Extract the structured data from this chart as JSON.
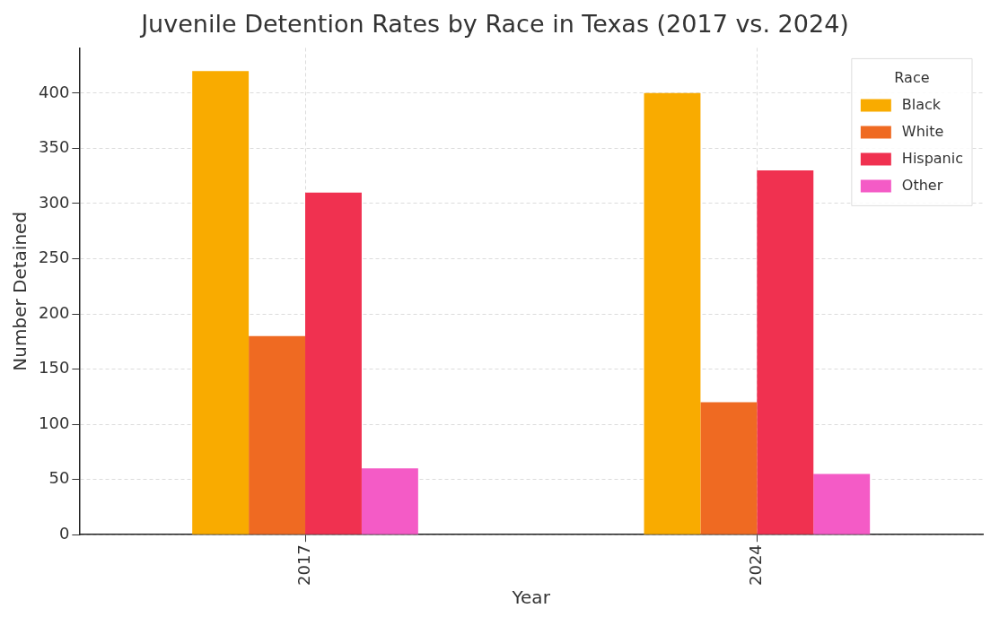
{
  "chart_data": {
    "type": "bar",
    "title": "Juvenile Detention Rates by Race in Texas (2017 vs. 2024)",
    "xlabel": "Year",
    "ylabel": "Number Detained",
    "legend_title": "Race",
    "categories": [
      "2017",
      "2024"
    ],
    "series": [
      {
        "name": "Black",
        "color": "#f9ab00",
        "values": [
          420,
          400
        ]
      },
      {
        "name": "White",
        "color": "#ef6a22",
        "values": [
          180,
          120
        ]
      },
      {
        "name": "Hispanic",
        "color": "#f03150",
        "values": [
          310,
          330
        ]
      },
      {
        "name": "Other",
        "color": "#f45bc6",
        "values": [
          60,
          55
        ]
      }
    ],
    "ylim": [
      0,
      441
    ],
    "yticks": [
      0,
      50,
      100,
      150,
      200,
      250,
      300,
      350,
      400
    ],
    "grid": true,
    "legend": "top right"
  }
}
